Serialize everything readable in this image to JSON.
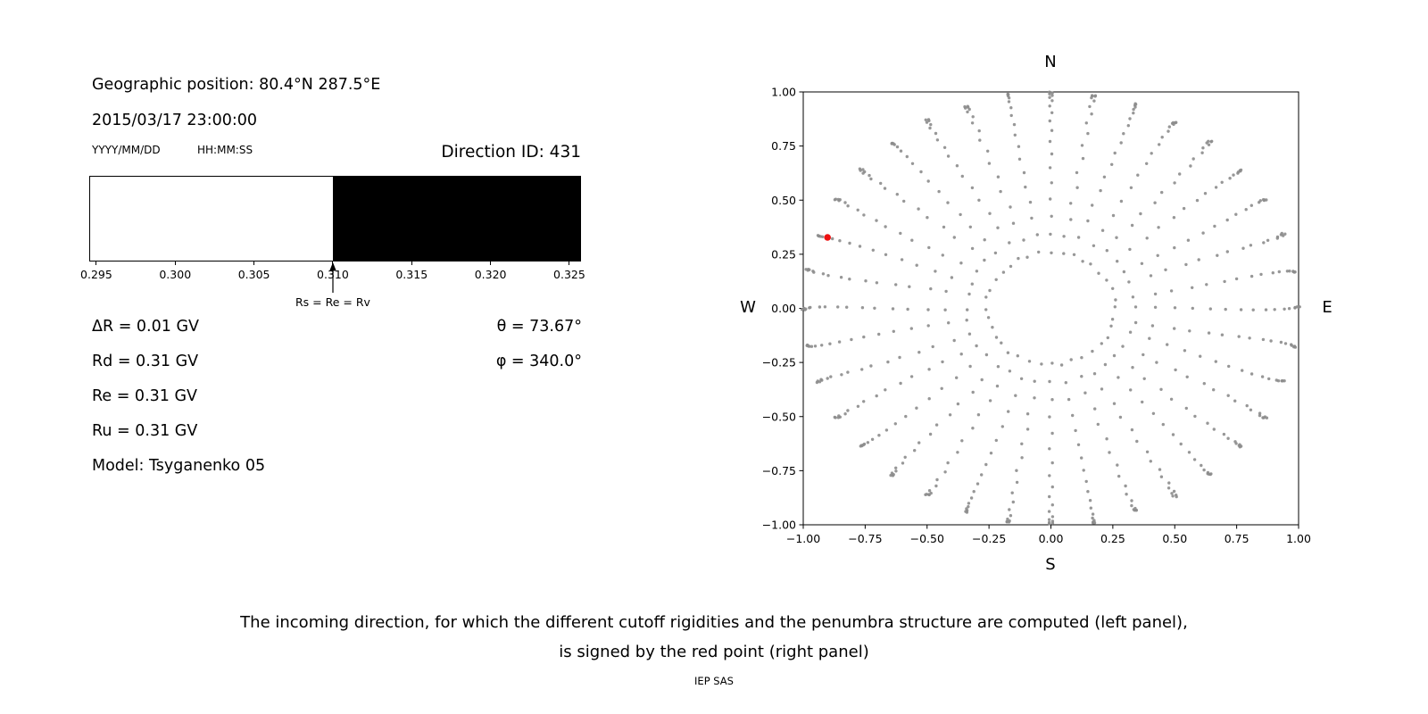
{
  "left_panel": {
    "geographic_position": "Geographic position: 80.4°N 287.5°E",
    "datetime": "2015/03/17 23:00:00",
    "date_format_label": "YYYY/MM/DD",
    "time_format_label": "HH:MM:SS",
    "direction_id_label": "Direction ID: 431",
    "rows": [
      "ΔR = 0.01 GV",
      "Rd = 0.31 GV",
      "Re = 0.31 GV",
      "Ru = 0.31 GV",
      "Model: Tsyganenko 05"
    ],
    "angles": [
      "θ = 73.67°",
      "φ = 340.0°"
    ]
  },
  "caption": {
    "line1": "The incoming direction, for which the different cutoff rigidities and the penumbra structure are computed (left panel),",
    "line2": "is signed by the red point (right panel)",
    "credit": "IEP SAS"
  },
  "chart_data": [
    {
      "type": "bar",
      "name": "penumbra-structure",
      "description": "Penumbra structure along the rigidity axis: white band = allowed rigidities, black band = forbidden rigidities",
      "x_range": [
        0.29455,
        0.32574
      ],
      "x_ticks": [
        0.295,
        0.3,
        0.305,
        0.31,
        0.315,
        0.32,
        0.325
      ],
      "x_tick_labels": [
        "0.295",
        "0.300",
        "0.305",
        "0.310",
        "0.315",
        "0.320",
        "0.325"
      ],
      "segments": [
        {
          "from": 0.29455,
          "to": 0.31,
          "state": "allowed",
          "color": "#ffffff"
        },
        {
          "from": 0.31,
          "to": 0.32574,
          "state": "forbidden",
          "color": "#000000"
        }
      ],
      "marker": {
        "value": 0.31,
        "label": "Rs = Re = Rv"
      }
    },
    {
      "type": "scatter",
      "name": "incoming-directions",
      "xlim": [
        -1.0,
        1.0
      ],
      "ylim": [
        -1.0,
        1.0
      ],
      "x_ticks": [
        -1.0,
        -0.75,
        -0.5,
        -0.25,
        0.0,
        0.25,
        0.5,
        0.75,
        1.0
      ],
      "y_ticks": [
        -1.0,
        -0.75,
        -0.5,
        -0.25,
        0.0,
        0.25,
        0.5,
        0.75,
        1.0
      ],
      "tick_labels": [
        "−1.00",
        "−0.75",
        "−0.50",
        "−0.25",
        "0.00",
        "0.25",
        "0.50",
        "0.75",
        "1.00"
      ],
      "compass": {
        "top": "N",
        "bottom": "S",
        "left": "W",
        "right": "E"
      },
      "grid": {
        "azimuth_count": 36,
        "azimuth_step_deg": 10,
        "zenith_angles_deg": [
          15,
          20,
          25,
          30,
          35,
          40,
          45,
          50,
          55,
          60,
          65,
          70,
          75,
          79,
          82,
          85,
          87,
          89
        ],
        "radius_mapping": "sin(zenith)",
        "dot_color": "#8c8c8c"
      },
      "highlight_point": {
        "x": -0.902,
        "y": 0.328,
        "color": "#ee1111",
        "meaning": "selected incoming direction (red point), Direction ID 431"
      }
    }
  ]
}
